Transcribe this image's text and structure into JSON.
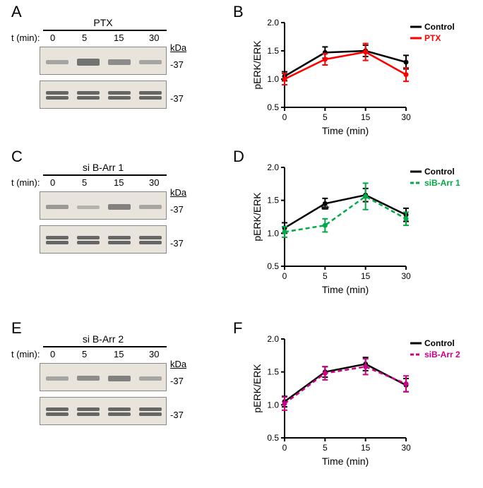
{
  "colors": {
    "control": "#000000",
    "ptx": "#ff0000",
    "sibarr1": "#00aa44",
    "sibarr2": "#cc0088",
    "blot_bg": "#e8e4dc",
    "band_dark": "#555555",
    "band_light": "#888888"
  },
  "typography": {
    "panel_label_fontsize": 22,
    "axis_label_fontsize": 14,
    "tick_label_fontsize": 12,
    "legend_fontsize": 13
  },
  "panels": {
    "A": {
      "label": "A",
      "treatment": "PTX",
      "time_prefix": "t (min):",
      "times": [
        "0",
        "5",
        "15",
        "30"
      ],
      "kda_label": "kDa",
      "markers": [
        "37",
        "37"
      ]
    },
    "B": {
      "label": "B",
      "chart": {
        "type": "line",
        "x_label": "Time (min)",
        "y_label": "pERK/ERK",
        "x_ticks": [
          0,
          5,
          15,
          30
        ],
        "y_ticks": [
          0.5,
          1.0,
          1.5,
          2.0
        ],
        "ylim": [
          0.5,
          2.0
        ],
        "series": [
          {
            "name": "Control",
            "color": "#000000",
            "values": [
              1.05,
              1.47,
              1.5,
              1.3
            ],
            "err": [
              0.08,
              0.1,
              0.1,
              0.12
            ]
          },
          {
            "name": "PTX",
            "color": "#ff0000",
            "values": [
              1.0,
              1.35,
              1.48,
              1.08
            ],
            "err": [
              0.1,
              0.1,
              0.15,
              0.12
            ]
          }
        ],
        "legend": [
          "Control",
          "PTX"
        ]
      }
    },
    "C": {
      "label": "C",
      "treatment": "si B-Arr 1",
      "time_prefix": "t (min):",
      "times": [
        "0",
        "5",
        "15",
        "30"
      ],
      "kda_label": "kDa",
      "markers": [
        "37",
        "37"
      ]
    },
    "D": {
      "label": "D",
      "chart": {
        "type": "line",
        "x_label": "Time (min)",
        "y_label": "pERK/ERK",
        "x_ticks": [
          0,
          5,
          15,
          30
        ],
        "y_ticks": [
          0.5,
          1.0,
          1.5,
          2.0
        ],
        "ylim": [
          0.5,
          2.0
        ],
        "series": [
          {
            "name": "Control",
            "color": "#000000",
            "values": [
              1.08,
              1.45,
              1.58,
              1.28
            ],
            "err": [
              0.08,
              0.08,
              0.1,
              0.1
            ]
          },
          {
            "name": "siB-Arr 1",
            "color": "#00aa44",
            "dashed": true,
            "values": [
              1.02,
              1.12,
              1.56,
              1.22
            ],
            "err": [
              0.08,
              0.1,
              0.2,
              0.1
            ]
          }
        ],
        "legend": [
          "Control",
          "siB-Arr 1"
        ],
        "significance": {
          "label": "**",
          "x_index": 1
        }
      }
    },
    "E": {
      "label": "E",
      "treatment": "si B-Arr 2",
      "time_prefix": "t (min):",
      "times": [
        "0",
        "5",
        "15",
        "30"
      ],
      "kda_label": "kDa",
      "markers": [
        "37",
        "37"
      ]
    },
    "F": {
      "label": "F",
      "chart": {
        "type": "line",
        "x_label": "Time (min)",
        "y_label": "pERK/ERK",
        "x_ticks": [
          0,
          5,
          15,
          30
        ],
        "y_ticks": [
          0.5,
          1.0,
          1.5,
          2.0
        ],
        "ylim": [
          0.5,
          2.0
        ],
        "series": [
          {
            "name": "Control",
            "color": "#000000",
            "values": [
              1.05,
              1.5,
              1.62,
              1.3
            ],
            "err": [
              0.08,
              0.08,
              0.1,
              0.1
            ]
          },
          {
            "name": "siB-Arr 2",
            "color": "#cc0088",
            "dashed": true,
            "values": [
              1.02,
              1.48,
              1.58,
              1.32
            ],
            "err": [
              0.1,
              0.1,
              0.12,
              0.12
            ]
          }
        ],
        "legend": [
          "Control",
          "siB-Arr 2"
        ]
      }
    }
  }
}
